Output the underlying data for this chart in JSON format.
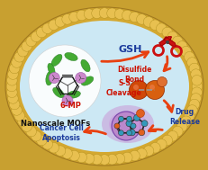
{
  "bg_outer": "#c8a030",
  "bg_cell": "#cce8f4",
  "cell_border_color": "#d4a830",
  "labels": {
    "gsh": "GSH",
    "disulfide": "Disulfide\nBond",
    "sixmp": "6-MP",
    "nanomof": "Nanoscale MOFs",
    "ss_cleavage": "S-S\nCleavage",
    "drug_release": "Drug\nRelease",
    "apoptosis": "Cancer Cell\nApoptosis"
  },
  "label_colors": {
    "gsh": "#1a3a9c",
    "disulfide": "#cc1100",
    "sixmp": "#cc1100",
    "nanomof": "#111111",
    "ss_cleavage": "#cc1100",
    "drug_release": "#1a3a9c",
    "apoptosis": "#1a3a9c"
  },
  "arrow_color": "#e84010",
  "scissors_color": "#cc0000"
}
